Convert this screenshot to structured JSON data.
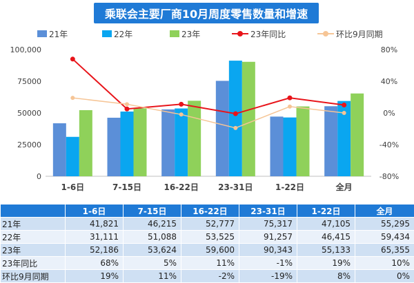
{
  "chart_data": {
    "type": "bar",
    "title": "乘联会主要厂商10月周度零售数量和增速",
    "categories": [
      "1-6日",
      "7-15日",
      "16-22日",
      "23-31日",
      "1-22日",
      "全月"
    ],
    "series": [
      {
        "name": "21年",
        "kind": "bar",
        "axis": "left",
        "color": "#5b8fd8",
        "values": [
          41821,
          46215,
          52777,
          75317,
          47105,
          55295
        ]
      },
      {
        "name": "22年",
        "kind": "bar",
        "axis": "left",
        "color": "#0aa6f0",
        "values": [
          31111,
          51088,
          53525,
          91257,
          46415,
          59434
        ]
      },
      {
        "name": "23年",
        "kind": "bar",
        "axis": "left",
        "color": "#8fd15a",
        "values": [
          52186,
          53624,
          59600,
          90343,
          55133,
          65355
        ]
      },
      {
        "name": "23年同比",
        "kind": "line",
        "axis": "right",
        "color": "#e8141a",
        "values": [
          68,
          5,
          11,
          -1,
          19,
          10
        ]
      },
      {
        "name": "环比9月同期",
        "kind": "line",
        "axis": "right",
        "color": "#f6c596",
        "values": [
          19,
          11,
          -2,
          -19,
          8,
          0
        ]
      }
    ],
    "y_left": {
      "min": 0,
      "max": 100000,
      "ticks": [
        "0",
        "25000",
        "50000",
        "75000",
        "100,000"
      ]
    },
    "y_right": {
      "min": -80,
      "max": 80,
      "ticks": [
        "-80%",
        "-40%",
        "0%",
        "40%",
        "80%"
      ]
    },
    "legend_position": "top",
    "grid": false
  },
  "table": {
    "headers": [
      "",
      "1-6日",
      "7-15日",
      "16-22日",
      "23-31日",
      "1-22日",
      "全月"
    ],
    "rows": [
      {
        "label": "21年",
        "cells": [
          "41,821",
          "46,215",
          "52,777",
          "75,317",
          "47,105",
          "55,295"
        ]
      },
      {
        "label": "22年",
        "cells": [
          "31,111",
          "51,088",
          "53,525",
          "91,257",
          "46,415",
          "59,434"
        ]
      },
      {
        "label": "23年",
        "cells": [
          "52,186",
          "53,624",
          "59,600",
          "90,343",
          "55,133",
          "65,355"
        ]
      },
      {
        "label": "23年同比",
        "cells": [
          "68%",
          "5%",
          "11%",
          "-1%",
          "19%",
          "10%"
        ]
      },
      {
        "label": "环比9月同期",
        "cells": [
          "19%",
          "11%",
          "-2%",
          "-19%",
          "8%",
          "0%"
        ]
      }
    ]
  }
}
